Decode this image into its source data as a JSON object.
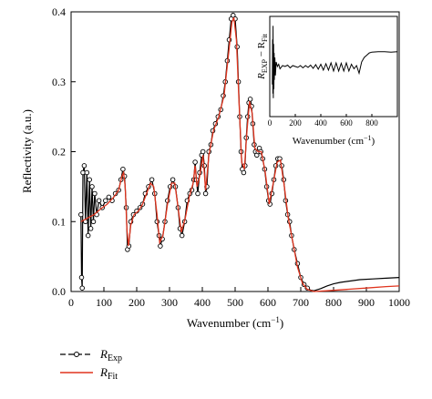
{
  "chart_data": {
    "type": "line",
    "ylabel": "Reflectivity (a.u.)",
    "xlabel": "Wavenumber (cm",
    "xlabel_sup": "−1",
    "xlabel_close": ")",
    "xlim": [
      0,
      1000
    ],
    "ylim": [
      0,
      0.4
    ],
    "x_ticks": [
      0,
      100,
      200,
      300,
      400,
      500,
      600,
      700,
      800,
      900,
      1000
    ],
    "y_ticks": [
      0.0,
      0.1,
      0.2,
      0.3,
      0.4
    ],
    "x_tick_labels": [
      "0",
      "100",
      "200",
      "300",
      "400",
      "500",
      "600",
      "700",
      "800",
      "900",
      "1000"
    ],
    "y_tick_labels": [
      "0.0",
      "0.1",
      "0.2",
      "0.3",
      "0.4"
    ],
    "series": [
      {
        "name": "R_Exp",
        "legend_main": "R",
        "legend_sub": "Exp",
        "color": "#000000",
        "style": "line with open circles",
        "points": [
          [
            30,
            0.11
          ],
          [
            32,
            0.02
          ],
          [
            34,
            0.005
          ],
          [
            36,
            0.17
          ],
          [
            40,
            0.18
          ],
          [
            44,
            0.1
          ],
          [
            48,
            0.17
          ],
          [
            52,
            0.08
          ],
          [
            56,
            0.16
          ],
          [
            60,
            0.09
          ],
          [
            64,
            0.15
          ],
          [
            68,
            0.1
          ],
          [
            72,
            0.14
          ],
          [
            78,
            0.11
          ],
          [
            85,
            0.13
          ],
          [
            95,
            0.12
          ],
          [
            105,
            0.13
          ],
          [
            115,
            0.135
          ],
          [
            125,
            0.13
          ],
          [
            135,
            0.14
          ],
          [
            145,
            0.145
          ],
          [
            152,
            0.16
          ],
          [
            158,
            0.175
          ],
          [
            163,
            0.165
          ],
          [
            168,
            0.12
          ],
          [
            172,
            0.06
          ],
          [
            176,
            0.065
          ],
          [
            182,
            0.1
          ],
          [
            190,
            0.11
          ],
          [
            200,
            0.115
          ],
          [
            210,
            0.12
          ],
          [
            218,
            0.125
          ],
          [
            226,
            0.14
          ],
          [
            236,
            0.15
          ],
          [
            246,
            0.16
          ],
          [
            255,
            0.14
          ],
          [
            262,
            0.1
          ],
          [
            268,
            0.08
          ],
          [
            272,
            0.065
          ],
          [
            278,
            0.075
          ],
          [
            286,
            0.1
          ],
          [
            294,
            0.13
          ],
          [
            302,
            0.15
          ],
          [
            310,
            0.16
          ],
          [
            318,
            0.15
          ],
          [
            326,
            0.12
          ],
          [
            332,
            0.09
          ],
          [
            338,
            0.08
          ],
          [
            346,
            0.1
          ],
          [
            354,
            0.13
          ],
          [
            362,
            0.14
          ],
          [
            368,
            0.145
          ],
          [
            374,
            0.16
          ],
          [
            378,
            0.185
          ],
          [
            382,
            0.16
          ],
          [
            386,
            0.14
          ],
          [
            392,
            0.17
          ],
          [
            398,
            0.195
          ],
          [
            402,
            0.2
          ],
          [
            406,
            0.18
          ],
          [
            410,
            0.14
          ],
          [
            414,
            0.15
          ],
          [
            420,
            0.2
          ],
          [
            426,
            0.21
          ],
          [
            432,
            0.23
          ],
          [
            440,
            0.24
          ],
          [
            448,
            0.25
          ],
          [
            456,
            0.26
          ],
          [
            464,
            0.28
          ],
          [
            470,
            0.3
          ],
          [
            476,
            0.33
          ],
          [
            482,
            0.36
          ],
          [
            488,
            0.39
          ],
          [
            494,
            0.395
          ],
          [
            500,
            0.39
          ],
          [
            506,
            0.35
          ],
          [
            510,
            0.3
          ],
          [
            514,
            0.25
          ],
          [
            518,
            0.2
          ],
          [
            522,
            0.175
          ],
          [
            526,
            0.17
          ],
          [
            530,
            0.18
          ],
          [
            534,
            0.22
          ],
          [
            538,
            0.25
          ],
          [
            542,
            0.27
          ],
          [
            546,
            0.275
          ],
          [
            550,
            0.265
          ],
          [
            554,
            0.24
          ],
          [
            558,
            0.21
          ],
          [
            562,
            0.2
          ],
          [
            566,
            0.195
          ],
          [
            570,
            0.2
          ],
          [
            574,
            0.205
          ],
          [
            578,
            0.2
          ],
          [
            584,
            0.19
          ],
          [
            590,
            0.175
          ],
          [
            596,
            0.15
          ],
          [
            602,
            0.13
          ],
          [
            606,
            0.125
          ],
          [
            612,
            0.14
          ],
          [
            618,
            0.16
          ],
          [
            624,
            0.18
          ],
          [
            630,
            0.19
          ],
          [
            636,
            0.19
          ],
          [
            642,
            0.18
          ],
          [
            648,
            0.16
          ],
          [
            654,
            0.13
          ],
          [
            660,
            0.11
          ],
          [
            666,
            0.1
          ],
          [
            672,
            0.08
          ],
          [
            680,
            0.06
          ],
          [
            690,
            0.04
          ],
          [
            700,
            0.02
          ],
          [
            710,
            0.01
          ],
          [
            720,
            0.005
          ],
          [
            730,
            0.002
          ],
          [
            740,
            0.001
          ],
          [
            760,
            0.004
          ],
          [
            780,
            0.008
          ],
          [
            800,
            0.011
          ],
          [
            820,
            0.013
          ],
          [
            850,
            0.015
          ],
          [
            880,
            0.017
          ],
          [
            920,
            0.018
          ],
          [
            960,
            0.019
          ],
          [
            1000,
            0.02
          ]
        ]
      },
      {
        "name": "R_Fit",
        "legend_main": "R",
        "legend_sub": "Fit",
        "color": "#e0341e",
        "style": "line",
        "points": [
          [
            30,
            0.1
          ],
          [
            50,
            0.105
          ],
          [
            70,
            0.11
          ],
          [
            90,
            0.118
          ],
          [
            110,
            0.125
          ],
          [
            130,
            0.135
          ],
          [
            145,
            0.145
          ],
          [
            155,
            0.165
          ],
          [
            160,
            0.17
          ],
          [
            165,
            0.15
          ],
          [
            170,
            0.09
          ],
          [
            175,
            0.065
          ],
          [
            182,
            0.095
          ],
          [
            192,
            0.11
          ],
          [
            205,
            0.115
          ],
          [
            218,
            0.125
          ],
          [
            230,
            0.14
          ],
          [
            242,
            0.155
          ],
          [
            252,
            0.15
          ],
          [
            262,
            0.11
          ],
          [
            270,
            0.07
          ],
          [
            280,
            0.08
          ],
          [
            294,
            0.125
          ],
          [
            306,
            0.155
          ],
          [
            316,
            0.155
          ],
          [
            326,
            0.12
          ],
          [
            336,
            0.085
          ],
          [
            348,
            0.105
          ],
          [
            360,
            0.135
          ],
          [
            372,
            0.155
          ],
          [
            378,
            0.18
          ],
          [
            384,
            0.15
          ],
          [
            392,
            0.165
          ],
          [
            402,
            0.195
          ],
          [
            410,
            0.145
          ],
          [
            420,
            0.195
          ],
          [
            434,
            0.23
          ],
          [
            450,
            0.25
          ],
          [
            466,
            0.28
          ],
          [
            480,
            0.34
          ],
          [
            490,
            0.385
          ],
          [
            496,
            0.392
          ],
          [
            504,
            0.36
          ],
          [
            512,
            0.27
          ],
          [
            520,
            0.185
          ],
          [
            528,
            0.175
          ],
          [
            536,
            0.23
          ],
          [
            544,
            0.272
          ],
          [
            552,
            0.255
          ],
          [
            560,
            0.205
          ],
          [
            570,
            0.2
          ],
          [
            580,
            0.2
          ],
          [
            592,
            0.17
          ],
          [
            604,
            0.125
          ],
          [
            616,
            0.155
          ],
          [
            628,
            0.185
          ],
          [
            638,
            0.188
          ],
          [
            650,
            0.15
          ],
          [
            662,
            0.105
          ],
          [
            676,
            0.07
          ],
          [
            690,
            0.035
          ],
          [
            705,
            0.012
          ],
          [
            720,
            0.003
          ],
          [
            740,
            0.0
          ],
          [
            780,
            0.001
          ],
          [
            840,
            0.003
          ],
          [
            900,
            0.005
          ],
          [
            960,
            0.007
          ],
          [
            1000,
            0.008
          ]
        ]
      }
    ],
    "inset": {
      "ylabel_main": "R",
      "ylabel_sub1": "EXP",
      "ylabel_mid": " − R",
      "ylabel_sub2": "Fit",
      "xlabel": "Wavenumber (cm",
      "xlabel_sup": "−1",
      "xlabel_close": ")",
      "x_ticks": [
        0,
        200,
        400,
        600,
        800
      ],
      "x_tick_labels": [
        "0",
        "200",
        "400",
        "600",
        "800"
      ],
      "xlim": [
        0,
        1000
      ],
      "ylim": [
        -1,
        1
      ],
      "residual_points": [
        [
          20,
          -0.4
        ],
        [
          22,
          0.6
        ],
        [
          24,
          -0.6
        ],
        [
          26,
          0.9
        ],
        [
          28,
          -0.7
        ],
        [
          30,
          0.5
        ],
        [
          32,
          -0.5
        ],
        [
          34,
          0.3
        ],
        [
          36,
          -0.3
        ],
        [
          40,
          0.2
        ],
        [
          44,
          -0.2
        ],
        [
          50,
          0.1
        ],
        [
          60,
          0.0
        ],
        [
          70,
          0.05
        ],
        [
          80,
          -0.05
        ],
        [
          100,
          0.02
        ],
        [
          120,
          0.0
        ],
        [
          140,
          0.03
        ],
        [
          160,
          -0.03
        ],
        [
          180,
          0.02
        ],
        [
          200,
          0.0
        ],
        [
          220,
          -0.02
        ],
        [
          240,
          0.02
        ],
        [
          260,
          -0.03
        ],
        [
          280,
          0.02
        ],
        [
          300,
          -0.02
        ],
        [
          320,
          0.03
        ],
        [
          340,
          -0.04
        ],
        [
          360,
          0.04
        ],
        [
          380,
          -0.06
        ],
        [
          400,
          0.05
        ],
        [
          420,
          -0.08
        ],
        [
          440,
          0.06
        ],
        [
          460,
          -0.08
        ],
        [
          480,
          0.08
        ],
        [
          500,
          -0.1
        ],
        [
          520,
          0.08
        ],
        [
          540,
          -0.1
        ],
        [
          560,
          0.07
        ],
        [
          580,
          -0.1
        ],
        [
          600,
          0.08
        ],
        [
          620,
          -0.1
        ],
        [
          640,
          0.05
        ],
        [
          660,
          -0.05
        ],
        [
          680,
          0.02
        ],
        [
          700,
          -0.15
        ],
        [
          720,
          0.1
        ],
        [
          740,
          0.2
        ],
        [
          760,
          0.25
        ],
        [
          780,
          0.3
        ],
        [
          800,
          0.32
        ],
        [
          850,
          0.33
        ],
        [
          900,
          0.33
        ],
        [
          950,
          0.32
        ],
        [
          1000,
          0.33
        ]
      ]
    }
  }
}
